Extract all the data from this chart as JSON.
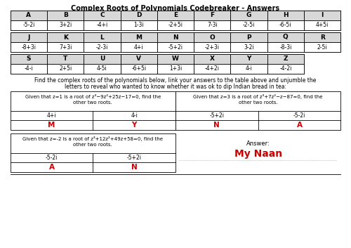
{
  "title": "Complex Roots of Polynomials Codebreaker - Answers",
  "table1_letters": [
    "A",
    "B",
    "C",
    "D",
    "E",
    "F",
    "G",
    "H",
    "I"
  ],
  "table1_values": [
    "-5-2i",
    "3+2i",
    "-4+i",
    "1-3i",
    "-2+5i",
    "7-3i",
    "-2-5i",
    "-6-5i",
    "4+5i"
  ],
  "table2_letters": [
    "J",
    "K",
    "L",
    "M",
    "N",
    "O",
    "P",
    "Q",
    "R"
  ],
  "table2_values": [
    "-8+3i",
    "7+3i",
    "-2-3i",
    "4+i",
    "-5+2i",
    "-2+3i",
    "3-2i",
    "-8-3i",
    "2-5i"
  ],
  "table3_letters": [
    "S",
    "T",
    "U",
    "V",
    "W",
    "X",
    "Y",
    "Z"
  ],
  "table3_values": [
    "-4-i",
    "2+5i",
    "4-5i",
    "-6+5i",
    "1+3i",
    "-4+2i",
    "4-i",
    "-4-2i"
  ],
  "description1": "Find the complex roots of the polynomials below, link your answers to the table above and unjumble the",
  "description2": "letters to reveal who wanted to know whether it was ok to dip Indian bread in tea:",
  "box1_title1": "Given that z=1 is a root of z³−9z²+25z−17=0, find the",
  "box1_title2": "other two roots.",
  "box1_vals": [
    "4+i",
    "4-i"
  ],
  "box1_letters": [
    "M",
    "Y"
  ],
  "box2_title1": "Given that z=3 is a root of z³+7z²−z−87=0, find the",
  "box2_title2": "other two roots.",
  "box2_vals": [
    "-5+2i",
    "-5-2i"
  ],
  "box2_letters": [
    "N",
    "A"
  ],
  "box3_title1": "Given that z=-2 is a root of z³+12z²+49z+58=0, find the",
  "box3_title2": "other two roots.",
  "box3_vals": [
    "-5-2i",
    "-5+2i"
  ],
  "box3_letters": [
    "A",
    "N"
  ],
  "answer_label": "Answer:",
  "answer_text": "My Naan",
  "bg_color": "#ffffff",
  "header_bg": "#d8d8d8",
  "red_color": "#cc0000"
}
